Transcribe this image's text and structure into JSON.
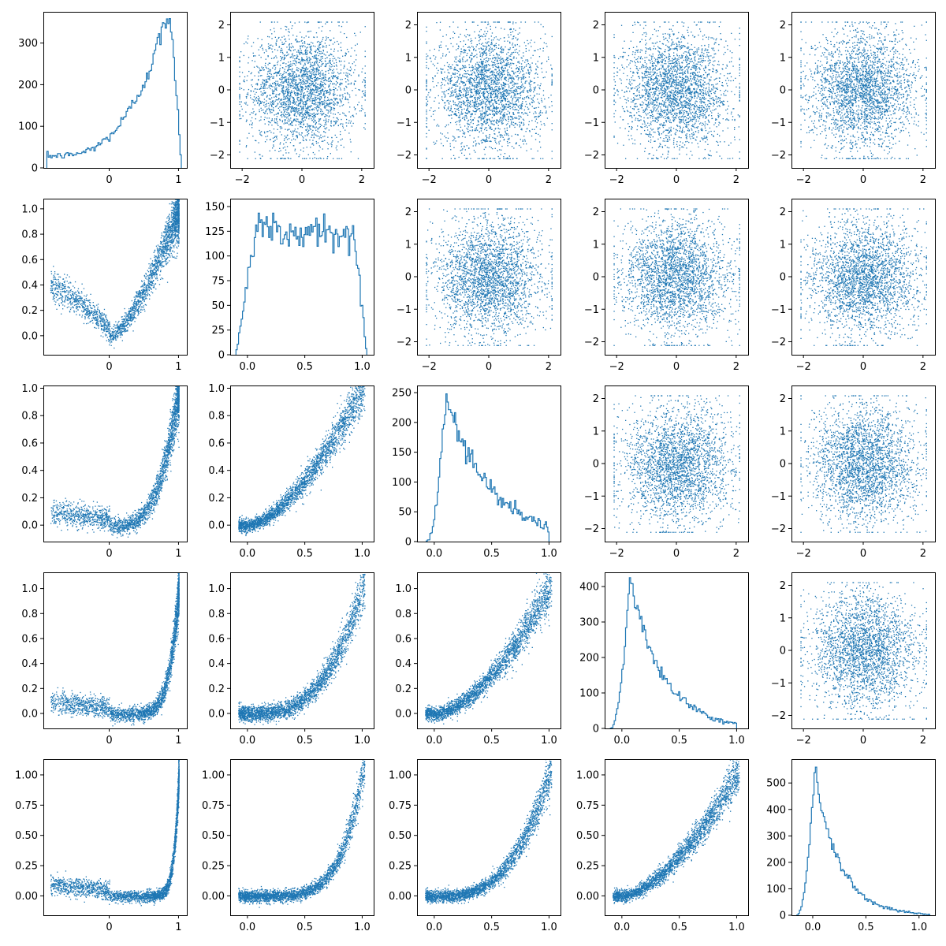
{
  "chart_data": {
    "type": "scatter",
    "layout": "5x5 corner (pair) plot",
    "color": "#1f77b4",
    "panels": [
      {
        "row": 0,
        "col": 0,
        "type": "histogram",
        "xticks": [
          0,
          1
        ],
        "yticks": [
          0,
          100,
          200,
          300
        ],
        "xlim": [
          -0.95,
          1.12
        ],
        "ylim": [
          0,
          375
        ],
        "hist": {
          "x0": -0.9,
          "x1": 1.04,
          "dist": "skew_left",
          "peak": 0.82,
          "peak_count": 358,
          "low": 0.08
        }
      },
      {
        "row": 0,
        "col": 1,
        "type": "scatter",
        "xticks": [
          -2,
          0,
          2
        ],
        "yticks": [
          -2,
          -1,
          0,
          1,
          2
        ],
        "xlim": [
          -2.4,
          2.4
        ],
        "ylim": [
          -2.4,
          2.4
        ],
        "pattern": "round"
      },
      {
        "row": 0,
        "col": 2,
        "type": "scatter",
        "xticks": [
          -2,
          0,
          2
        ],
        "yticks": [
          -2,
          -1,
          0,
          1,
          2
        ],
        "xlim": [
          -2.4,
          2.4
        ],
        "ylim": [
          -2.4,
          2.4
        ],
        "pattern": "round"
      },
      {
        "row": 0,
        "col": 3,
        "type": "scatter",
        "xticks": [
          -2,
          0,
          2
        ],
        "yticks": [
          -2,
          -1,
          0,
          1,
          2
        ],
        "xlim": [
          -2.4,
          2.4
        ],
        "ylim": [
          -2.4,
          2.4
        ],
        "pattern": "round"
      },
      {
        "row": 0,
        "col": 4,
        "type": "scatter",
        "xticks": [
          -2,
          0,
          2
        ],
        "yticks": [
          -2,
          -1,
          0,
          1,
          2
        ],
        "xlim": [
          -2.4,
          2.4
        ],
        "ylim": [
          -2.4,
          2.4
        ],
        "pattern": "round"
      },
      {
        "row": 1,
        "col": 0,
        "type": "scatter",
        "xticks": [
          0,
          1
        ],
        "yticks": [
          "0.0",
          "0.2",
          "0.4",
          "0.6",
          "0.8",
          "1.0"
        ],
        "xlim": [
          -0.95,
          1.12
        ],
        "ylim": [
          -0.15,
          1.08
        ],
        "pattern": "curve",
        "curve": {
          "shape": "v",
          "k": 0.55,
          "spread": 0.05
        }
      },
      {
        "row": 1,
        "col": 1,
        "type": "histogram",
        "xticks": [
          "0.0",
          "0.5",
          "1.0"
        ],
        "yticks": [
          0,
          25,
          50,
          75,
          100,
          125,
          150
        ],
        "xlim": [
          -0.15,
          1.1
        ],
        "ylim": [
          0,
          158
        ],
        "hist": {
          "x0": -0.1,
          "x1": 1.04,
          "dist": "plateau",
          "peak_count": 152
        }
      },
      {
        "row": 1,
        "col": 2,
        "type": "scatter",
        "xticks": [
          -2,
          0,
          2
        ],
        "yticks": [
          -2,
          -1,
          0,
          1,
          2
        ],
        "xlim": [
          -2.4,
          2.4
        ],
        "ylim": [
          -2.4,
          2.4
        ],
        "pattern": "round"
      },
      {
        "row": 1,
        "col": 3,
        "type": "scatter",
        "xticks": [
          -2,
          0,
          2
        ],
        "yticks": [
          -2,
          -1,
          0,
          1,
          2
        ],
        "xlim": [
          -2.4,
          2.4
        ],
        "ylim": [
          -2.4,
          2.4
        ],
        "pattern": "round"
      },
      {
        "row": 1,
        "col": 4,
        "type": "scatter",
        "xticks": [
          -2,
          0,
          2
        ],
        "yticks": [
          -2,
          -1,
          0,
          1,
          2
        ],
        "xlim": [
          -2.4,
          2.4
        ],
        "ylim": [
          -2.4,
          2.4
        ],
        "pattern": "round"
      },
      {
        "row": 2,
        "col": 0,
        "type": "scatter",
        "xticks": [
          0,
          1
        ],
        "yticks": [
          "0.0",
          "0.2",
          "0.4",
          "0.6",
          "0.8",
          "1.0"
        ],
        "xlim": [
          -0.95,
          1.12
        ],
        "ylim": [
          -0.12,
          1.02
        ],
        "pattern": "curve",
        "curve": {
          "shape": "power",
          "p": 3.5,
          "spread": 0.05
        }
      },
      {
        "row": 2,
        "col": 1,
        "type": "scatter",
        "xticks": [
          "0.0",
          "0.5",
          "1.0"
        ],
        "yticks": [
          "0.0",
          "0.2",
          "0.4",
          "0.6",
          "0.8",
          "1.0"
        ],
        "xlim": [
          -0.15,
          1.1
        ],
        "ylim": [
          -0.12,
          1.02
        ],
        "pattern": "curve",
        "curve": {
          "shape": "power",
          "p": 1.6,
          "spread": 0.04
        }
      },
      {
        "row": 2,
        "col": 2,
        "type": "histogram",
        "xticks": [
          "0.0",
          "0.5",
          "1.0"
        ],
        "yticks": [
          0,
          50,
          100,
          150,
          200,
          250
        ],
        "xlim": [
          -0.15,
          1.1
        ],
        "ylim": [
          0,
          262
        ],
        "hist": {
          "x0": -0.07,
          "x1": 1.0,
          "dist": "skew_right",
          "peak": 0.1,
          "peak_count": 248,
          "tail": 0.45
        }
      },
      {
        "row": 2,
        "col": 3,
        "type": "scatter",
        "xticks": [
          -2,
          0,
          2
        ],
        "yticks": [
          -2,
          -1,
          0,
          1,
          2
        ],
        "xlim": [
          -2.4,
          2.4
        ],
        "ylim": [
          -2.4,
          2.4
        ],
        "pattern": "round"
      },
      {
        "row": 2,
        "col": 4,
        "type": "scatter",
        "xticks": [
          -2,
          0,
          2
        ],
        "yticks": [
          -2,
          -1,
          0,
          1,
          2
        ],
        "xlim": [
          -2.4,
          2.4
        ],
        "ylim": [
          -2.4,
          2.4
        ],
        "pattern": "round"
      },
      {
        "row": 3,
        "col": 0,
        "type": "scatter",
        "xticks": [
          0,
          1
        ],
        "yticks": [
          "0.0",
          "0.2",
          "0.4",
          "0.6",
          "0.8",
          "1.0"
        ],
        "xlim": [
          -0.95,
          1.12
        ],
        "ylim": [
          -0.12,
          1.13
        ],
        "pattern": "curve",
        "curve": {
          "shape": "power",
          "p": 7,
          "spread": 0.05
        }
      },
      {
        "row": 3,
        "col": 1,
        "type": "scatter",
        "xticks": [
          "0.0",
          "0.5",
          "1.0"
        ],
        "yticks": [
          "0.0",
          "0.2",
          "0.4",
          "0.6",
          "0.8",
          "1.0"
        ],
        "xlim": [
          -0.15,
          1.1
        ],
        "ylim": [
          -0.12,
          1.13
        ],
        "pattern": "curve",
        "curve": {
          "shape": "power",
          "p": 3,
          "spread": 0.05
        }
      },
      {
        "row": 3,
        "col": 2,
        "type": "scatter",
        "xticks": [
          "0.0",
          "0.5",
          "1.0"
        ],
        "yticks": [
          "0.0",
          "0.2",
          "0.4",
          "0.6",
          "0.8",
          "1.0"
        ],
        "xlim": [
          -0.15,
          1.1
        ],
        "ylim": [
          -0.12,
          1.13
        ],
        "pattern": "curve",
        "curve": {
          "shape": "power",
          "p": 1.7,
          "spread": 0.045
        }
      },
      {
        "row": 3,
        "col": 3,
        "type": "histogram",
        "xticks": [
          "0.0",
          "0.5",
          "1.0"
        ],
        "yticks": [
          0,
          100,
          200,
          300,
          400
        ],
        "xlim": [
          -0.15,
          1.1
        ],
        "ylim": [
          0,
          440
        ],
        "hist": {
          "x0": -0.1,
          "x1": 1.0,
          "dist": "skew_right",
          "peak": 0.07,
          "peak_count": 425,
          "tail": 0.3
        }
      },
      {
        "row": 3,
        "col": 4,
        "type": "scatter",
        "xticks": [
          -2,
          0,
          2
        ],
        "yticks": [
          -2,
          -1,
          0,
          1,
          2
        ],
        "xlim": [
          -2.4,
          2.4
        ],
        "ylim": [
          -2.4,
          2.4
        ],
        "pattern": "round"
      },
      {
        "row": 4,
        "col": 0,
        "type": "scatter",
        "xticks": [
          0,
          1
        ],
        "yticks": [
          "0.00",
          "0.25",
          "0.50",
          "0.75",
          "1.00"
        ],
        "xlim": [
          -0.95,
          1.12
        ],
        "ylim": [
          -0.16,
          1.13
        ],
        "pattern": "curve",
        "curve": {
          "shape": "power",
          "p": 14,
          "spread": 0.04
        }
      },
      {
        "row": 4,
        "col": 1,
        "type": "scatter",
        "xticks": [
          "0.0",
          "0.5",
          "1.0"
        ],
        "yticks": [
          "0.00",
          "0.25",
          "0.50",
          "0.75",
          "1.00"
        ],
        "xlim": [
          -0.15,
          1.1
        ],
        "ylim": [
          -0.16,
          1.13
        ],
        "pattern": "curve",
        "curve": {
          "shape": "power",
          "p": 5,
          "spread": 0.04
        }
      },
      {
        "row": 4,
        "col": 2,
        "type": "scatter",
        "xticks": [
          "0.0",
          "0.5",
          "1.0"
        ],
        "yticks": [
          "0.00",
          "0.25",
          "0.50",
          "0.75",
          "1.00"
        ],
        "xlim": [
          -0.15,
          1.1
        ],
        "ylim": [
          -0.16,
          1.13
        ],
        "pattern": "curve",
        "curve": {
          "shape": "power",
          "p": 3,
          "spread": 0.04
        }
      },
      {
        "row": 4,
        "col": 3,
        "type": "scatter",
        "xticks": [
          "0.0",
          "0.5",
          "1.0"
        ],
        "yticks": [
          "0.00",
          "0.25",
          "0.50",
          "0.75",
          "1.00"
        ],
        "xlim": [
          -0.15,
          1.1
        ],
        "ylim": [
          -0.16,
          1.13
        ],
        "pattern": "curve",
        "curve": {
          "shape": "power",
          "p": 1.6,
          "spread": 0.04
        }
      },
      {
        "row": 4,
        "col": 4,
        "type": "histogram",
        "xticks": [
          "0.0",
          "0.5",
          "1.0"
        ],
        "yticks": [
          0,
          100,
          200,
          300,
          400,
          500
        ],
        "xlim": [
          -0.2,
          1.15
        ],
        "ylim": [
          0,
          590
        ],
        "hist": {
          "x0": -0.15,
          "x1": 1.1,
          "dist": "skew_right",
          "peak": 0.02,
          "peak_count": 560,
          "tail": 0.2
        }
      }
    ]
  }
}
